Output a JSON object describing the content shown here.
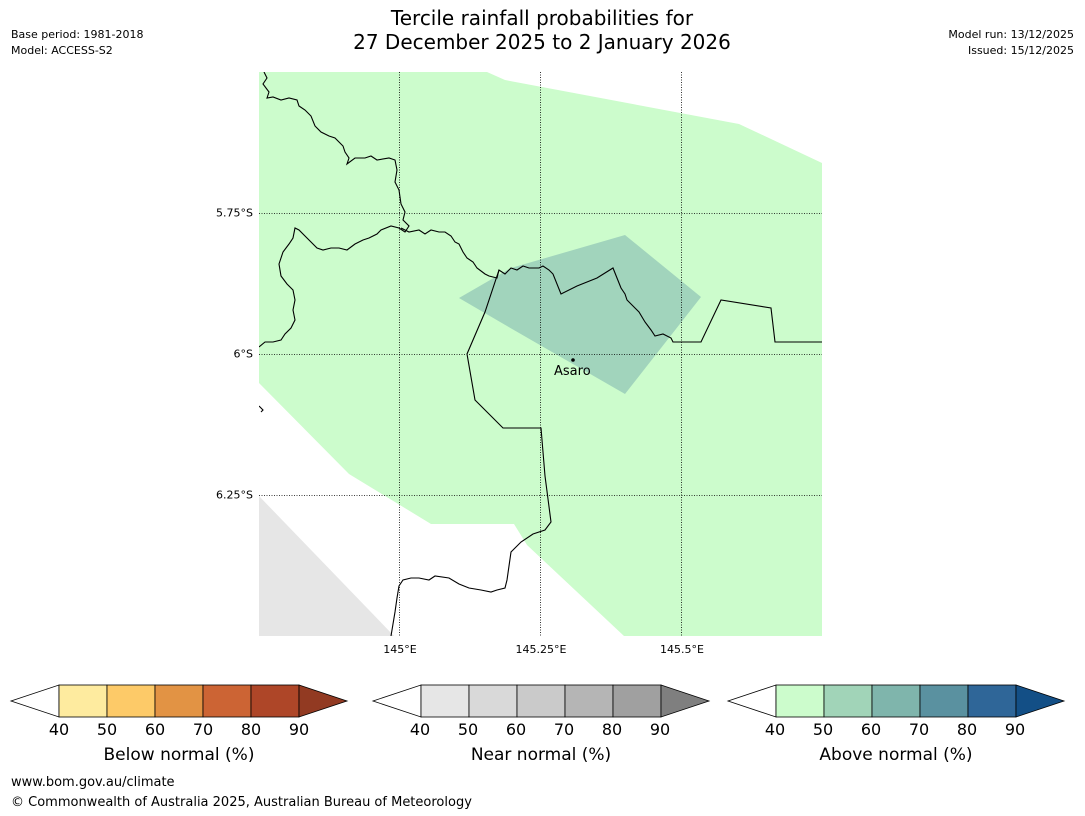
{
  "header": {
    "title_line1": "Tercile rainfall probabilities for",
    "title_line2": "27 December 2025 to 2 January 2026",
    "base_period": "Base period: 1981-2018",
    "model": "Model: ACCESS-S2",
    "model_run": "Model run: 13/12/2025",
    "issued": "Issued: 15/12/2025"
  },
  "map": {
    "latitude_labels": [
      "5.75°S",
      "6°S",
      "6.25°S"
    ],
    "longitude_labels": [
      "145°E",
      "145.25°E",
      "145.5°E"
    ],
    "place_label": "Asaro",
    "colors": {
      "above_40_50": "#ccfccc",
      "above_50_60": "#a1d4bc",
      "near_40_50": "#e6e6e6",
      "border": "#000000",
      "grid": "#000000"
    }
  },
  "legends": [
    {
      "name": "below",
      "title": "Below normal (%)",
      "ticks": [
        "40",
        "50",
        "60",
        "70",
        "80",
        "90"
      ],
      "colors": [
        "#ffffff",
        "#feeb9f",
        "#fdca68",
        "#e29344",
        "#cc6434",
        "#ae4628",
        "#923a22"
      ]
    },
    {
      "name": "near",
      "title": "Near normal (%)",
      "ticks": [
        "40",
        "50",
        "60",
        "70",
        "80",
        "90"
      ],
      "colors": [
        "#ffffff",
        "#e6e6e6",
        "#d9d9d9",
        "#cacaca",
        "#b5b5b5",
        "#a0a0a0",
        "#7f7f7f"
      ]
    },
    {
      "name": "above",
      "title": "Above normal (%)",
      "ticks": [
        "40",
        "50",
        "60",
        "70",
        "80",
        "90"
      ],
      "colors": [
        "#ffffff",
        "#ccfccc",
        "#a1d4b8",
        "#7fb5ac",
        "#5a91a0",
        "#2f6698",
        "#134f86"
      ]
    }
  ],
  "footer": {
    "website": "www.bom.gov.au/climate",
    "copyright": "© Commonwealth of Australia 2025, Australian Bureau of Meteorology"
  }
}
